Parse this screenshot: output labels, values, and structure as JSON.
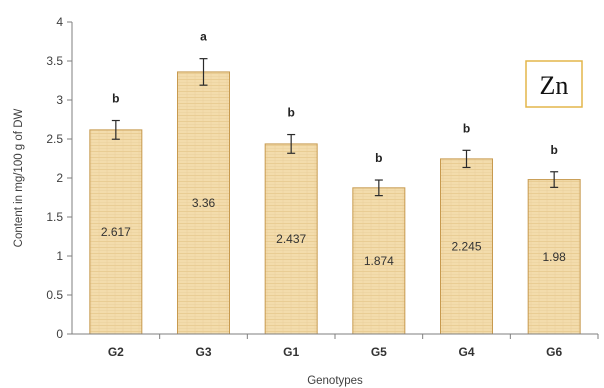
{
  "chart_data": {
    "type": "bar",
    "title": "",
    "xlabel": "Genotypes",
    "ylabel": "Content in mg/100 g  of DW",
    "ylim": [
      0,
      4
    ],
    "yticks": [
      "0",
      "0.5",
      "1",
      "1.5",
      "2",
      "2.5",
      "3",
      "3.5",
      "4"
    ],
    "categories": [
      "G2",
      "G3",
      "G1",
      "G5",
      "G4",
      "G6"
    ],
    "values": [
      2.617,
      3.36,
      2.437,
      1.874,
      2.245,
      1.98
    ],
    "value_labels": [
      "2.617",
      "3.36",
      "2.437",
      "1.874",
      "2.245",
      "1.98"
    ],
    "errors": [
      0.12,
      0.17,
      0.12,
      0.1,
      0.11,
      0.1
    ],
    "significance_letters": [
      "b",
      "a",
      "b",
      "b",
      "b",
      "b"
    ],
    "annotation": "Zn",
    "grid": false,
    "bar_fill_color": "#f3dcac",
    "bar_edge_color": "#c79a4f",
    "annotation_border_color": "#e3b64a"
  }
}
